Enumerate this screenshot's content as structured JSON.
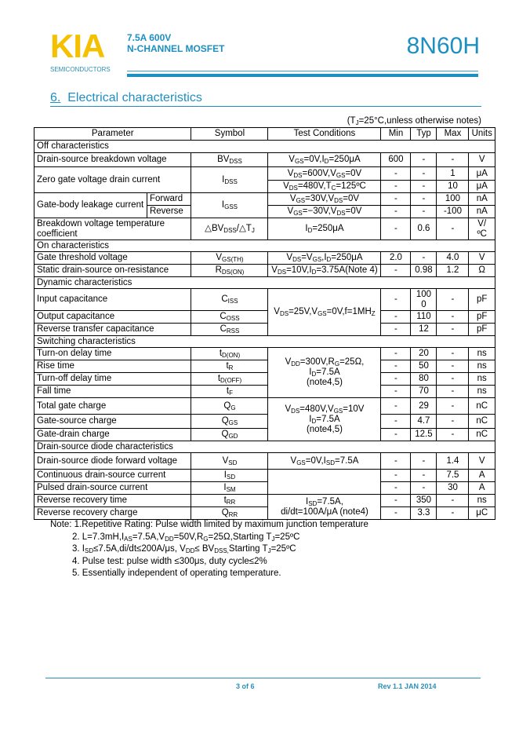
{
  "header": {
    "logo": "KIA",
    "logo_sub": "SEMICONDUCTORS",
    "line1": "7.5A 600V",
    "line2": "N-CHANNEL MOSFET",
    "part": "8N60H"
  },
  "section": {
    "num": "6.",
    "title": "Electrical characteristics"
  },
  "condition_note": "(T{J}=25°C,unless otherwise notes)",
  "table": {
    "headers": [
      "Parameter",
      "Symbol",
      "Test Conditions",
      "Min",
      "Typ",
      "Max",
      "Units"
    ],
    "rows": [
      {
        "h": 16,
        "group": "Off characteristics"
      },
      {
        "h": 18,
        "p": "Drain-source breakdown voltage",
        "s": "BV{DSS}",
        "c": "V{GS}=0V,I{D}=250μA",
        "min": "600",
        "typ": "-",
        "max": "-",
        "u": "V"
      },
      {
        "h": 17,
        "p": "Zero gate voltage drain current",
        "prs": 2,
        "s": "I{DSS}",
        "srs": 2,
        "c": "V{DS}=600V,V{GS}=0V",
        "min": "-",
        "typ": "-",
        "max": "1",
        "u": "μA"
      },
      {
        "h": 16,
        "c": "V{DS}=480V,T{C}=125ºC",
        "min": "-",
        "typ": "-",
        "max": "10",
        "u": "μA"
      },
      {
        "h": 16,
        "p": "Gate-body leakage current",
        "prs": 2,
        "p2": "Forward",
        "s": "I{GSS}",
        "srs": 2,
        "c": "V{GS}=30V,V{DS}=0V",
        "min": "-",
        "typ": "-",
        "max": "100",
        "u": "nA"
      },
      {
        "h": 16,
        "p2": "Reverse",
        "c": "V{GS}=−30V,V{DS}=0V",
        "min": "-",
        "typ": "-",
        "max": "-100",
        "u": "nA"
      },
      {
        "h": 28,
        "p": "Breakdown voltage temperature coefficient",
        "s": "△BV{DSS}/△T{J}",
        "c": "I{D}=250μA",
        "min": "-",
        "typ": "0.6",
        "max": "-",
        "u": "V/ ºC"
      },
      {
        "h": 15,
        "group": "On characteristics"
      },
      {
        "h": 16,
        "p": "Gate threshold voltage",
        "s": "V{GS(TH)}",
        "c": "V{DS}=V{GS},I{D}=250μA",
        "min": "2.0",
        "typ": "-",
        "max": "4.0",
        "u": "V"
      },
      {
        "h": 16,
        "p": "Static drain-source on-resistance",
        "s": "R{DS(ON)}",
        "c": "V{DS}=10V,I{D}=3.75A(Note 4)",
        "min": "-",
        "typ": "0.98",
        "max": "1.2",
        "u": "Ω"
      },
      {
        "h": 15,
        "group": "Dynamic characteristics"
      },
      {
        "h": 28,
        "p": "Input capacitance",
        "s": "C{ISS}",
        "c": "V{DS}=25V,V{GS}=0V,f=1MH{Z}",
        "crs": 3,
        "min": "-",
        "typ": "1000",
        "max": "-",
        "u": "pF"
      },
      {
        "h": 16,
        "p": "Output capacitance",
        "s": "C{OSS}",
        "min": "-",
        "typ": "110",
        "max": "-",
        "u": "pF"
      },
      {
        "h": 16,
        "p": "Reverse transfer capacitance",
        "s": "C{RSS}",
        "min": "-",
        "typ": "12",
        "max": "-",
        "u": "pF"
      },
      {
        "h": 15,
        "group": "Switching characteristics"
      },
      {
        "h": 16,
        "p": "Turn-on delay time",
        "s": "t{D(ON)}",
        "c": "V{DD}=300V,R{G}=25Ω,\nI{D}=7.5A\n(note4,5)",
        "crs": 4,
        "min": "-",
        "typ": "20",
        "max": "-",
        "u": "ns"
      },
      {
        "h": 16,
        "p": "Rise time",
        "s": "t{R}",
        "min": "-",
        "typ": "50",
        "max": "-",
        "u": "ns"
      },
      {
        "h": 16,
        "p": "Turn-off delay time",
        "s": "t{D(OFF)}",
        "min": "-",
        "typ": "80",
        "max": "-",
        "u": "ns"
      },
      {
        "h": 16,
        "p": "Fall time",
        "s": "t{F}",
        "min": "-",
        "typ": "70",
        "max": "-",
        "u": "ns"
      },
      {
        "h": 21,
        "p": "Total gate charge",
        "s": "Q{G}",
        "c": "V{DS}=480V,V{GS}=10V\nI{D}=7.5A\n(note4,5)",
        "crs": 3,
        "min": "-",
        "typ": "29",
        "max": "-",
        "u": "nC"
      },
      {
        "h": 18,
        "p": "Gate-source charge",
        "s": "Q{GS}",
        "min": "-",
        "typ": "4.7",
        "max": "-",
        "u": "nC"
      },
      {
        "h": 16,
        "p": "Gate-drain charge",
        "s": "Q{GD}",
        "min": "-",
        "typ": "12.5",
        "max": "-",
        "u": "nC"
      },
      {
        "h": 15,
        "group": "Drain-source diode characteristics"
      },
      {
        "h": 21,
        "p": "Drain-source diode forward voltage",
        "s": "V{SD}",
        "c": "V{GS}=0V,I{SD}=7.5A",
        "min": "-",
        "typ": "-",
        "max": "1.4",
        "u": "V"
      },
      {
        "h": 16,
        "p": "Continuous drain-source current",
        "s": "I{SD}",
        "c": "",
        "crs": 2,
        "min": "-",
        "typ": "-",
        "max": "7.5",
        "u": "A"
      },
      {
        "h": 16,
        "p": "Pulsed drain-source current",
        "s": "I{SM}",
        "min": "-",
        "typ": "-",
        "max": "30",
        "u": "A"
      },
      {
        "h": 16,
        "p": "Reverse recovery time",
        "s": "t{RR}",
        "c": "I{SD}=7.5A,\ndi/dt=100A/μA (note4)",
        "crs": 2,
        "min": "-",
        "typ": "350",
        "max": "-",
        "u": "ns"
      },
      {
        "h": 16,
        "p": "Reverse recovery charge",
        "s": "Q{RR}",
        "min": "-",
        "typ": "3.3",
        "max": "-",
        "u": "μC"
      }
    ]
  },
  "notes": [
    "Note: 1.Repetitive Rating: Pulse width limited by maximum junction temperature",
    "2. L=7.3mH,I{AS}=7.5A,V{DD}=50V,R{G}=25Ω,Starting T{J}=25ºC",
    "3. I{SD}≤7.5A,di/dt≤200A/μs, V{DD}≤ BV{DSS,}Starting T{J}=25ºC",
    "4. Pulse test: pulse width ≤300μs, duty cycle≤2%",
    "5. Essentially independent of operating temperature."
  ],
  "footer": {
    "page": "3 of 6",
    "rev": "Rev 1.1 JAN 2014"
  },
  "colors": {
    "brand_yellow": "#f5c000",
    "brand_blue": "#1d8fc0"
  }
}
